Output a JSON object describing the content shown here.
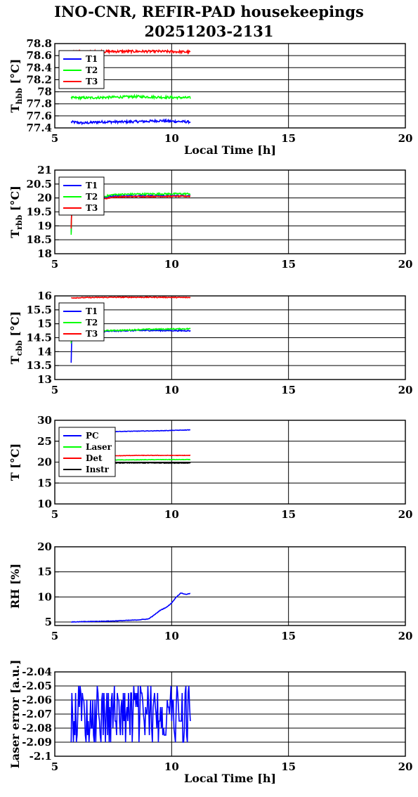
{
  "header": {
    "title_line1": "INO-CNR, REFIR-PAD housekeepings",
    "title_line2": "20251203-2131"
  },
  "chart_data": [
    {
      "type": "line",
      "ylabel": "T",
      "ylabel_sub": "hbb",
      "ylabel_unit": "[°C]",
      "xlabel": "Local Time [h]",
      "xlim": [
        5,
        20
      ],
      "xticks": [
        5,
        10,
        15,
        20
      ],
      "ylim": [
        77.4,
        78.8
      ],
      "yticks": [
        "77.4",
        "77.6",
        "77.8",
        "78",
        "78.2",
        "78.4",
        "78.6",
        "78.8"
      ],
      "grid": true,
      "legend_position": "top-left",
      "series": [
        {
          "name": "T1",
          "color": "#0000ff",
          "x": [
            5.7,
            6.2,
            7.0,
            8.0,
            9.0,
            9.5,
            10.0,
            10.8
          ],
          "y": [
            77.5,
            77.48,
            77.5,
            77.5,
            77.51,
            77.52,
            77.51,
            77.5
          ],
          "noise": 0.02
        },
        {
          "name": "T2",
          "color": "#00ff00",
          "x": [
            5.7,
            6.5,
            7.5,
            8.5,
            9.5,
            10.8
          ],
          "y": [
            77.9,
            77.9,
            77.91,
            77.92,
            77.91,
            77.9
          ],
          "noise": 0.02
        },
        {
          "name": "T3",
          "color": "#ff0000",
          "x": [
            5.7,
            6.5,
            7.5,
            8.5,
            9.5,
            10.8
          ],
          "y": [
            78.66,
            78.66,
            78.67,
            78.67,
            78.67,
            78.66
          ],
          "noise": 0.02
        }
      ]
    },
    {
      "type": "line",
      "ylabel": "T",
      "ylabel_sub": "rbb",
      "ylabel_unit": "[°C]",
      "xlabel": "",
      "xlim": [
        5,
        20
      ],
      "xticks": [
        5,
        10,
        15,
        20
      ],
      "ylim": [
        18,
        21
      ],
      "yticks": [
        "18",
        "18.5",
        "19",
        "19.5",
        "20",
        "20.5",
        "21"
      ],
      "grid": true,
      "legend_position": "top-left",
      "series": [
        {
          "name": "T1",
          "color": "#0000ff",
          "x": [
            5.7,
            5.72,
            6.0,
            7.0,
            7.5,
            8.5,
            10.8
          ],
          "y": [
            18.75,
            19.7,
            19.85,
            19.98,
            20.07,
            20.08,
            20.08
          ],
          "noise": 0.02
        },
        {
          "name": "T2",
          "color": "#00ff00",
          "x": [
            5.7,
            5.72,
            6.0,
            7.0,
            7.5,
            8.5,
            10.8
          ],
          "y": [
            18.7,
            19.75,
            19.9,
            20.03,
            20.12,
            20.14,
            20.15
          ],
          "noise": 0.03
        },
        {
          "name": "T3",
          "color": "#ff0000",
          "x": [
            5.7,
            5.72,
            6.0,
            7.0,
            7.5,
            8.5,
            10.8
          ],
          "y": [
            18.9,
            19.6,
            19.8,
            19.95,
            20.03,
            20.05,
            20.06
          ],
          "noise": 0.02
        }
      ]
    },
    {
      "type": "line",
      "ylabel": "T",
      "ylabel_sub": "cbb",
      "ylabel_unit": "[°C]",
      "xlabel": "",
      "xlim": [
        5,
        20
      ],
      "xticks": [
        5,
        10,
        15,
        20
      ],
      "ylim": [
        13,
        16
      ],
      "yticks": [
        "13",
        "13.5",
        "14",
        "14.5",
        "15",
        "15.5",
        "16"
      ],
      "grid": true,
      "legend_position": "top-left",
      "series": [
        {
          "name": "T1",
          "color": "#0000ff",
          "x": [
            5.7,
            5.72,
            6.0,
            7.0,
            8.0,
            9.0,
            10.8
          ],
          "y": [
            13.6,
            14.5,
            14.6,
            14.72,
            14.75,
            14.76,
            14.75
          ],
          "noise": 0.02
        },
        {
          "name": "T2",
          "color": "#00ff00",
          "x": [
            5.7,
            5.72,
            6.0,
            7.0,
            8.0,
            9.0,
            10.8
          ],
          "y": [
            14.3,
            14.6,
            14.7,
            14.75,
            14.77,
            14.8,
            14.82
          ],
          "noise": 0.02
        },
        {
          "name": "T3",
          "color": "#ff0000",
          "x": [
            5.7,
            6.5,
            7.5,
            8.5,
            9.5,
            10.8
          ],
          "y": [
            15.93,
            15.94,
            15.95,
            15.95,
            15.95,
            15.94
          ],
          "noise": 0.015
        }
      ]
    },
    {
      "type": "line",
      "ylabel": "T [°C]",
      "ylabel_sub": "",
      "ylabel_unit": "",
      "xlabel": "",
      "xlim": [
        5,
        20
      ],
      "xticks": [
        5,
        10,
        15,
        20
      ],
      "ylim": [
        10,
        30
      ],
      "yticks": [
        "10",
        "15",
        "20",
        "25",
        "30"
      ],
      "grid": true,
      "legend_position": "top-left",
      "series": [
        {
          "name": "PC",
          "color": "#0000ff",
          "x": [
            5.7,
            6.5,
            7.5,
            8.5,
            9.5,
            10.8
          ],
          "y": [
            27.0,
            27.2,
            27.3,
            27.4,
            27.5,
            27.7
          ],
          "noise": 0.05
        },
        {
          "name": "Laser",
          "color": "#00ff00",
          "x": [
            5.7,
            6.5,
            7.5,
            8.5,
            9.5,
            10.8
          ],
          "y": [
            20.4,
            20.5,
            20.5,
            20.55,
            20.6,
            20.6
          ],
          "noise": 0.05
        },
        {
          "name": "Det",
          "color": "#ff0000",
          "x": [
            5.7,
            6.5,
            7.5,
            8.5,
            9.5,
            10.8
          ],
          "y": [
            21.4,
            21.5,
            21.5,
            21.6,
            21.6,
            21.6
          ],
          "noise": 0.05
        },
        {
          "name": "Instr",
          "color": "#000000",
          "x": [
            5.7,
            6.5,
            7.5,
            8.5,
            9.5,
            10.8
          ],
          "y": [
            19.7,
            19.8,
            19.8,
            19.8,
            19.8,
            19.8
          ],
          "noise": 0.08
        }
      ]
    },
    {
      "type": "line",
      "ylabel": "RH [%]",
      "ylabel_sub": "",
      "ylabel_unit": "",
      "xlabel": "",
      "xlim": [
        5,
        20
      ],
      "xticks": [
        5,
        10,
        15,
        20
      ],
      "ylim": [
        4.3,
        20
      ],
      "yticks": [
        "5",
        "10",
        "15",
        "20"
      ],
      "grid": true,
      "legend_position": "",
      "series": [
        {
          "name": "",
          "color": "#0000ff",
          "x": [
            5.7,
            6.5,
            7.5,
            8.5,
            9.0,
            9.2,
            9.5,
            9.8,
            10.0,
            10.2,
            10.4,
            10.6,
            10.8
          ],
          "y": [
            5.0,
            5.1,
            5.2,
            5.4,
            5.6,
            6.2,
            7.3,
            8.0,
            8.8,
            10.0,
            10.8,
            10.5,
            10.7
          ],
          "noise": 0.05
        }
      ]
    },
    {
      "type": "line",
      "ylabel": "Laser error [a.u.]",
      "ylabel_sub": "",
      "ylabel_unit": "",
      "xlabel": "Local Time [h]",
      "xlim": [
        5,
        20
      ],
      "xticks": [
        5,
        10,
        15,
        20
      ],
      "ylim": [
        -2.1,
        -2.04
      ],
      "yticks": [
        "-2.1",
        "-2.09",
        "-2.08",
        "-2.07",
        "-2.06",
        "-2.05",
        "-2.04"
      ],
      "grid": true,
      "legend_position": "",
      "series": [
        {
          "name": "",
          "color": "#0000ff",
          "x": [
            5.7,
            10.8
          ],
          "y": [
            -2.067,
            -2.067
          ],
          "levels": [
            -2.05,
            -2.055,
            -2.06,
            -2.065,
            -2.07,
            -2.075,
            -2.08,
            -2.085,
            -2.09
          ],
          "noise": 0
        }
      ]
    }
  ]
}
